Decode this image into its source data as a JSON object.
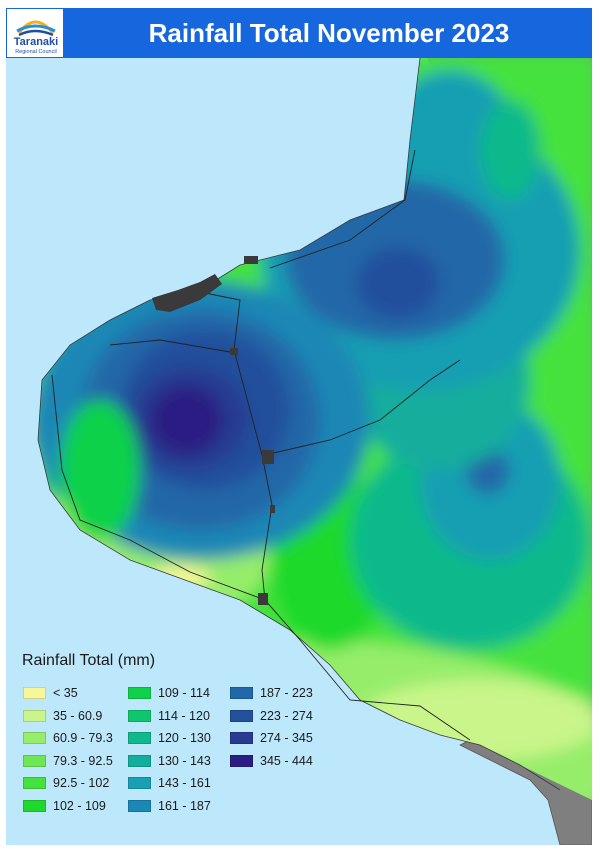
{
  "header": {
    "title": "Rainfall Total November 2023",
    "logo_name": "Taranaki",
    "logo_sub": "Regional Council"
  },
  "colors": {
    "sea": "#bde7fb",
    "land_outside": "#7f7f7f",
    "header": "#1666de"
  },
  "legend": {
    "title": "Rainfall Total (mm)",
    "items": [
      {
        "label": "< 35",
        "color": "#f6f79a"
      },
      {
        "label": "35 - 60.9",
        "color": "#c9f58a"
      },
      {
        "label": "60.9 - 79.3",
        "color": "#96ed6a"
      },
      {
        "label": "79.3 - 92.5",
        "color": "#6de854"
      },
      {
        "label": "92.5 - 102",
        "color": "#44e23d"
      },
      {
        "label": "102 - 109",
        "color": "#1ed92b"
      },
      {
        "label": "109 - 114",
        "color": "#10d14a"
      },
      {
        "label": "114 - 120",
        "color": "#0fc66e"
      },
      {
        "label": "120 - 130",
        "color": "#10b98b"
      },
      {
        "label": "130 - 143",
        "color": "#12ad9d"
      },
      {
        "label": "143 - 161",
        "color": "#189fb3"
      },
      {
        "label": "161 - 187",
        "color": "#1b87b5"
      },
      {
        "label": "187 - 223",
        "color": "#2068a8"
      },
      {
        "label": "223 - 274",
        "color": "#24509c"
      },
      {
        "label": "274 - 345",
        "color": "#283a91"
      },
      {
        "label": "345 - 444",
        "color": "#2a1e82"
      }
    ]
  }
}
